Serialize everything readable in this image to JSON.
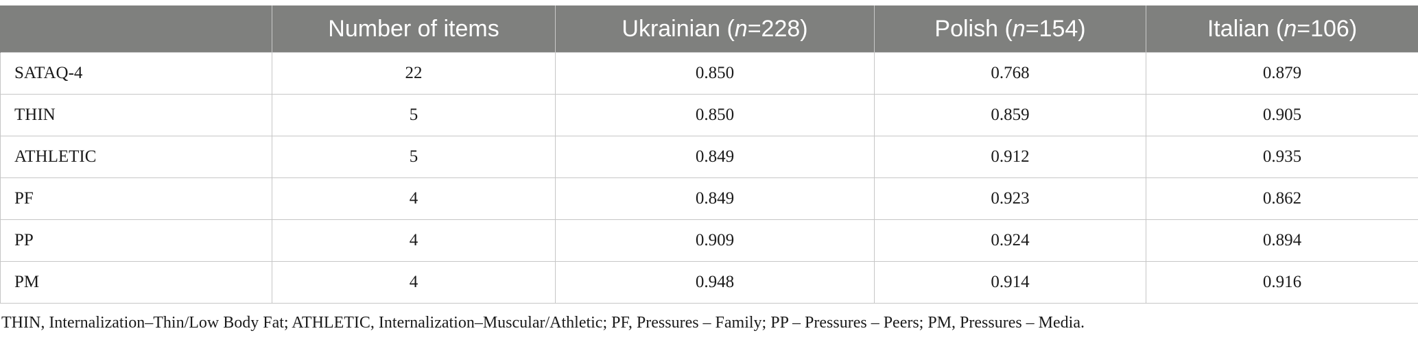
{
  "table": {
    "headers": [
      {
        "pre": "",
        "italic": "",
        "post": ""
      },
      {
        "pre": "Number of items",
        "italic": "",
        "post": ""
      },
      {
        "pre": "Ukrainian (",
        "italic": "n",
        "post": "=228)"
      },
      {
        "pre": "Polish (",
        "italic": "n",
        "post": "=154)"
      },
      {
        "pre": "Italian (",
        "italic": "n",
        "post": "=106)"
      }
    ],
    "rows": [
      {
        "label": "SATAQ-4",
        "items": "22",
        "ukrainian": "0.850",
        "polish": "0.768",
        "italian": "0.879"
      },
      {
        "label": "THIN",
        "items": "5",
        "ukrainian": "0.850",
        "polish": "0.859",
        "italian": "0.905"
      },
      {
        "label": "ATHLETIC",
        "items": "5",
        "ukrainian": "0.849",
        "polish": "0.912",
        "italian": "0.935"
      },
      {
        "label": "PF",
        "items": "4",
        "ukrainian": "0.849",
        "polish": "0.923",
        "italian": "0.862"
      },
      {
        "label": "PP",
        "items": "4",
        "ukrainian": "0.909",
        "polish": "0.924",
        "italian": "0.894"
      },
      {
        "label": "PM",
        "items": "4",
        "ukrainian": "0.948",
        "polish": "0.914",
        "italian": "0.916"
      }
    ]
  },
  "footnote": "THIN, Internalization–Thin/Low Body Fat; ATHLETIC, Internalization–Muscular/Athletic; PF, Pressures – Family; PP – Pressures – Peers; PM, Pressures – Media.",
  "colors": {
    "header_bg": "#7f807e",
    "header_text": "#ffffff",
    "grid_line": "#c6c6c6"
  }
}
